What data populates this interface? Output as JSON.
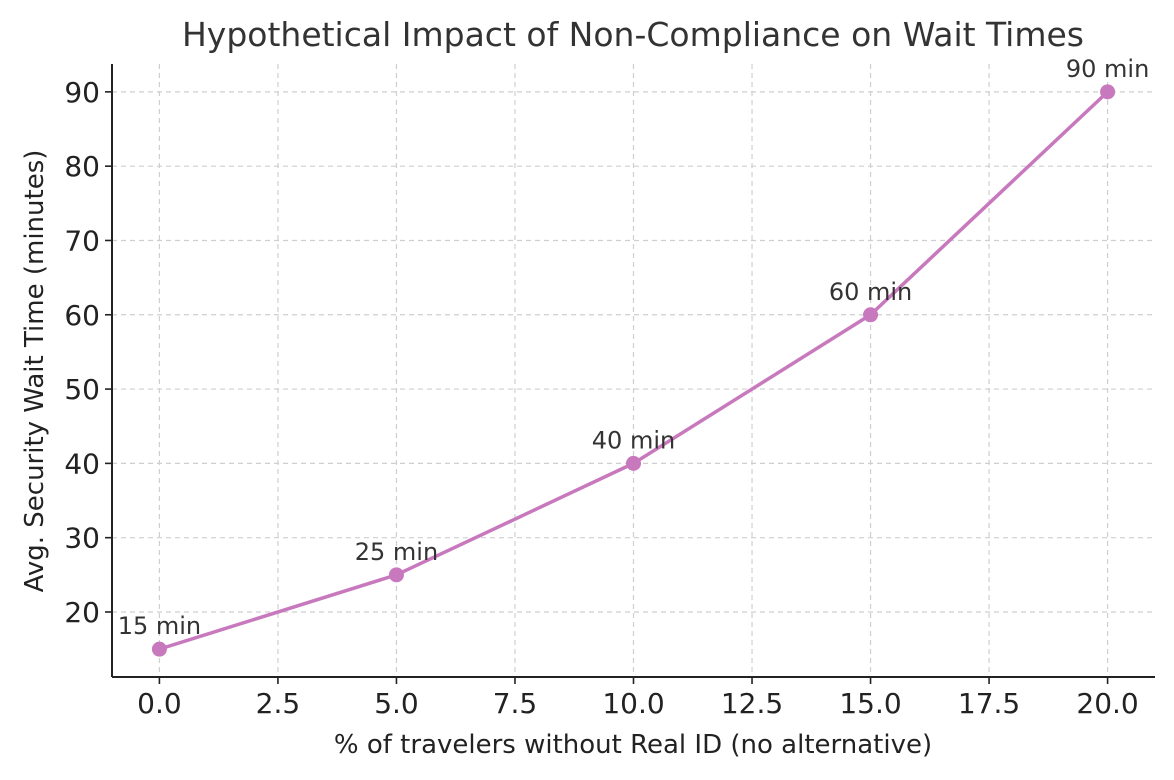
{
  "chart_data": {
    "type": "line",
    "title": "Hypothetical Impact of Non-Compliance on Wait Times",
    "xlabel": "% of travelers without Real ID (no alternative)",
    "ylabel": "Avg. Security Wait Time (minutes)",
    "xlim": [
      -1,
      21
    ],
    "ylim": [
      11.25,
      93.75
    ],
    "xticks": [
      0,
      2.5,
      5,
      7.5,
      10,
      12.5,
      15,
      17.5,
      20
    ],
    "xtick_labels": [
      "0.0",
      "2.5",
      "5.0",
      "7.5",
      "10.0",
      "12.5",
      "15.0",
      "17.5",
      "20.0"
    ],
    "yticks": [
      20,
      30,
      40,
      50,
      60,
      70,
      80,
      90
    ],
    "ytick_labels": [
      "20",
      "30",
      "40",
      "50",
      "60",
      "70",
      "80",
      "90"
    ],
    "grid": true,
    "series": [
      {
        "x": [
          0,
          5,
          10,
          15,
          20
        ],
        "values": [
          15,
          25,
          40,
          60,
          90
        ],
        "labels": [
          "15 min",
          "25 min",
          "40 min",
          "60 min",
          "90 min"
        ],
        "color": "#c879bd"
      }
    ]
  }
}
